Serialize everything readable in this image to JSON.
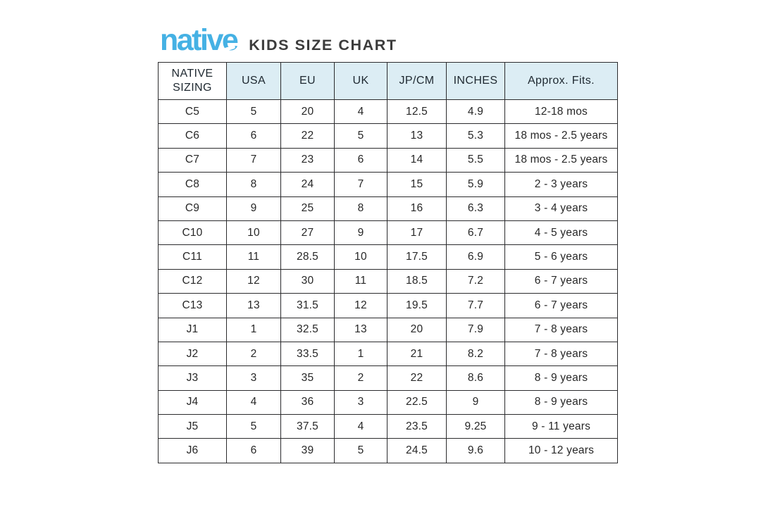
{
  "logo": {
    "text": "native"
  },
  "title": "KIDS SIZE CHART",
  "colors": {
    "logo_blue": "#45b1e4",
    "header_bg": "#dcedf4",
    "border": "#2b2b2d",
    "text": "#272727"
  },
  "table": {
    "headers": [
      "NATIVE SIZING",
      "USA",
      "EU",
      "UK",
      "JP/CM",
      "INCHES",
      "Approx. Fits."
    ],
    "rows": [
      [
        "C5",
        "5",
        "20",
        "4",
        "12.5",
        "4.9",
        "12-18 mos"
      ],
      [
        "C6",
        "6",
        "22",
        "5",
        "13",
        "5.3",
        "18 mos - 2.5 years"
      ],
      [
        "C7",
        "7",
        "23",
        "6",
        "14",
        "5.5",
        "18 mos - 2.5 years"
      ],
      [
        "C8",
        "8",
        "24",
        "7",
        "15",
        "5.9",
        "2 - 3 years"
      ],
      [
        "C9",
        "9",
        "25",
        "8",
        "16",
        "6.3",
        "3 - 4 years"
      ],
      [
        "C10",
        "10",
        "27",
        "9",
        "17",
        "6.7",
        "4 - 5 years"
      ],
      [
        "C11",
        "11",
        "28.5",
        "10",
        "17.5",
        "6.9",
        "5 - 6 years"
      ],
      [
        "C12",
        "12",
        "30",
        "11",
        "18.5",
        "7.2",
        "6 - 7 years"
      ],
      [
        "C13",
        "13",
        "31.5",
        "12",
        "19.5",
        "7.7",
        "6 - 7 years"
      ],
      [
        "J1",
        "1",
        "32.5",
        "13",
        "20",
        "7.9",
        "7 - 8 years"
      ],
      [
        "J2",
        "2",
        "33.5",
        "1",
        "21",
        "8.2",
        "7 - 8 years"
      ],
      [
        "J3",
        "3",
        "35",
        "2",
        "22",
        "8.6",
        "8 - 9 years"
      ],
      [
        "J4",
        "4",
        "36",
        "3",
        "22.5",
        "9",
        "8 - 9 years"
      ],
      [
        "J5",
        "5",
        "37.5",
        "4",
        "23.5",
        "9.25",
        "9 - 11 years"
      ],
      [
        "J6",
        "6",
        "39",
        "5",
        "24.5",
        "9.6",
        "10 - 12 years"
      ]
    ]
  }
}
